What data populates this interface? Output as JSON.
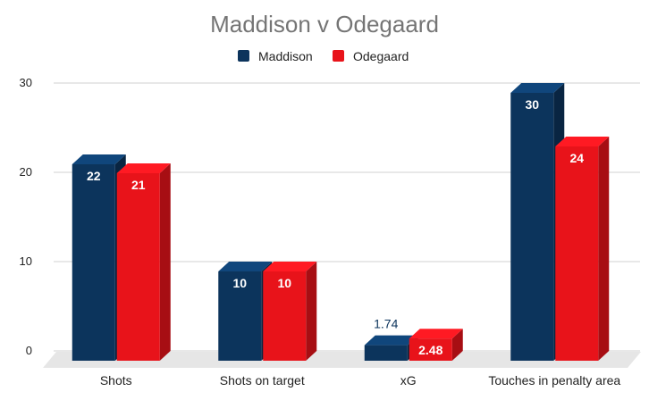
{
  "chart_data": {
    "type": "bar",
    "title": "Maddison v Odegaard",
    "categories": [
      "Shots",
      "Shots on target",
      "xG",
      "Touches in penalty area"
    ],
    "series": [
      {
        "name": "Maddison",
        "color": "#0c345c",
        "values": [
          22,
          10,
          1.74,
          30
        ]
      },
      {
        "name": "Odegaard",
        "color": "#e8131a",
        "values": [
          21,
          10,
          2.48,
          24
        ]
      }
    ],
    "data_labels": [
      [
        "22",
        "10",
        "1.74",
        "30"
      ],
      [
        "21",
        "10",
        "2.48",
        "24"
      ]
    ],
    "ylim": [
      0,
      30
    ],
    "yticks": [
      0,
      10,
      20,
      30
    ],
    "grid": true,
    "legend": "top",
    "style": "3d"
  }
}
